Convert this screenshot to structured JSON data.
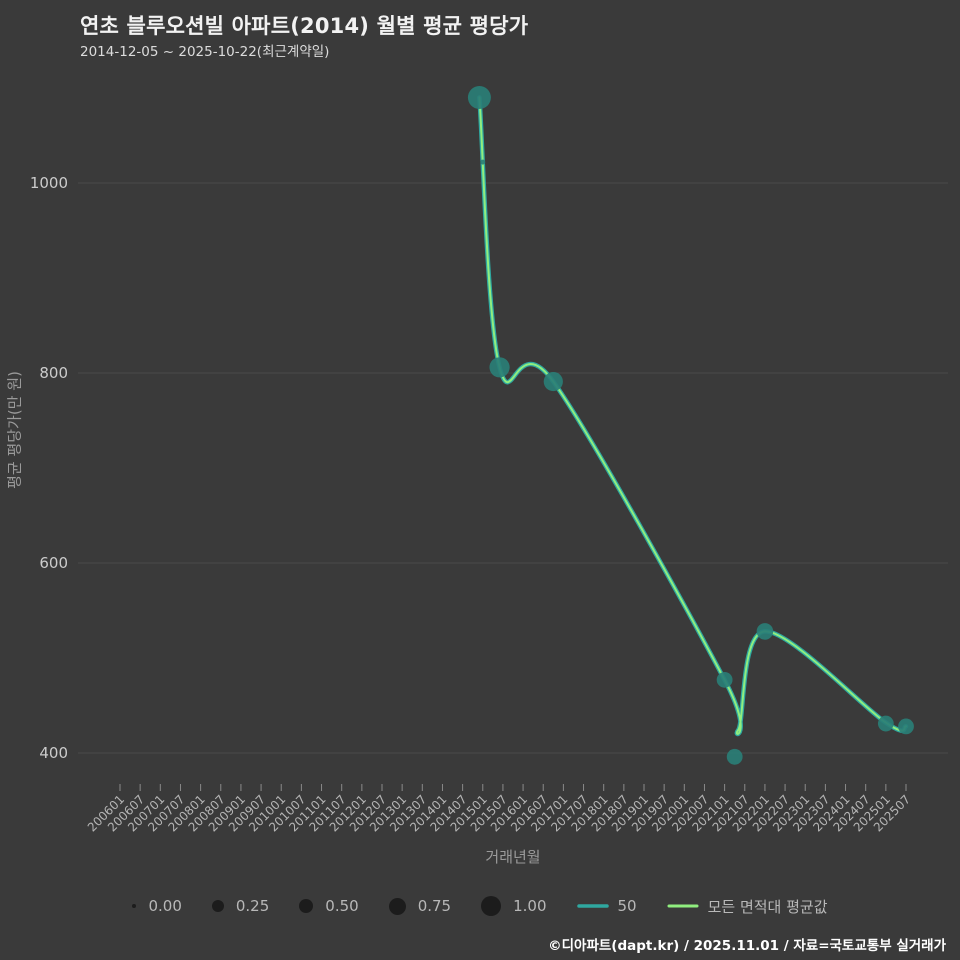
{
  "header": {
    "title": "연초 블루오션빌 아파트(2014) 월별 평균 평당가",
    "subtitle": "2014-12-05 ~ 2025-10-22(최근계약일)"
  },
  "footer": {
    "credit": "©디아파트(dapt.kr) / 2025.11.01 / 자료=국토교통부 실거래가"
  },
  "chart_data": {
    "type": "line",
    "title": "연초 블루오션빌 아파트(2014) 월별 평균 평당가",
    "xlabel": "거래년월",
    "ylabel": "평균 평당가(만 원)",
    "y_ticks": [
      400,
      600,
      800,
      1000
    ],
    "ylim": [
      360,
      1120
    ],
    "grid": "on",
    "legend_position": "bottom",
    "x_ticks": [
      "200601",
      "200607",
      "200701",
      "200707",
      "200801",
      "200807",
      "200901",
      "200907",
      "201001",
      "201007",
      "201101",
      "201107",
      "201201",
      "201207",
      "201301",
      "201307",
      "201401",
      "201407",
      "201501",
      "201507",
      "201601",
      "201607",
      "201701",
      "201707",
      "201801",
      "201807",
      "201901",
      "201907",
      "202001",
      "202007",
      "202101",
      "202107",
      "202201",
      "202207",
      "202301",
      "202307",
      "202401",
      "202407",
      "202501",
      "202507"
    ],
    "series": [
      {
        "name": "50",
        "color": "#2fa8a0",
        "width": 4.5,
        "points": [
          [
            201412,
            1090
          ],
          [
            201506,
            806
          ],
          [
            201610,
            791
          ],
          [
            202101,
            477
          ],
          [
            202105,
            424
          ],
          [
            202201,
            528
          ],
          [
            202501,
            432
          ],
          [
            202507,
            428
          ]
        ]
      },
      {
        "name": "모든 면적대 평균값",
        "color": "#90ee7f",
        "width": 2,
        "points": [
          [
            201412,
            1090
          ],
          [
            201506,
            806
          ],
          [
            201610,
            791
          ],
          [
            202101,
            477
          ],
          [
            202105,
            424
          ],
          [
            202201,
            528
          ],
          [
            202501,
            432
          ],
          [
            202507,
            428
          ]
        ]
      }
    ],
    "scatter": {
      "color": "#2a7e76",
      "points": [
        {
          "x": 201412,
          "v": 1090,
          "size": 1.0
        },
        {
          "x": 201501,
          "v": 1022,
          "size": 0.05
        },
        {
          "x": 201506,
          "v": 806,
          "size": 0.85
        },
        {
          "x": 201610,
          "v": 791,
          "size": 0.8
        },
        {
          "x": 202101,
          "v": 477,
          "size": 0.62
        },
        {
          "x": 202104,
          "v": 396,
          "size": 0.62
        },
        {
          "x": 202201,
          "v": 528,
          "size": 0.66
        },
        {
          "x": 202501,
          "v": 431,
          "size": 0.62
        },
        {
          "x": 202507,
          "v": 428,
          "size": 0.62
        }
      ]
    },
    "legend_sizes": [
      {
        "label": "0.00",
        "d": 4
      },
      {
        "label": "0.25",
        "d": 12
      },
      {
        "label": "0.50",
        "d": 14
      },
      {
        "label": "0.75",
        "d": 17
      },
      {
        "label": "1.00",
        "d": 20
      }
    ],
    "colors": {
      "background": "#3a3a3a",
      "grid": "#4a4a4a",
      "tick_mark": "#8a8a8a",
      "x_tick_label": "#b5b5b5",
      "y_tick_label": "#cccccc",
      "legend_bubble": "#1c1c1c"
    }
  }
}
